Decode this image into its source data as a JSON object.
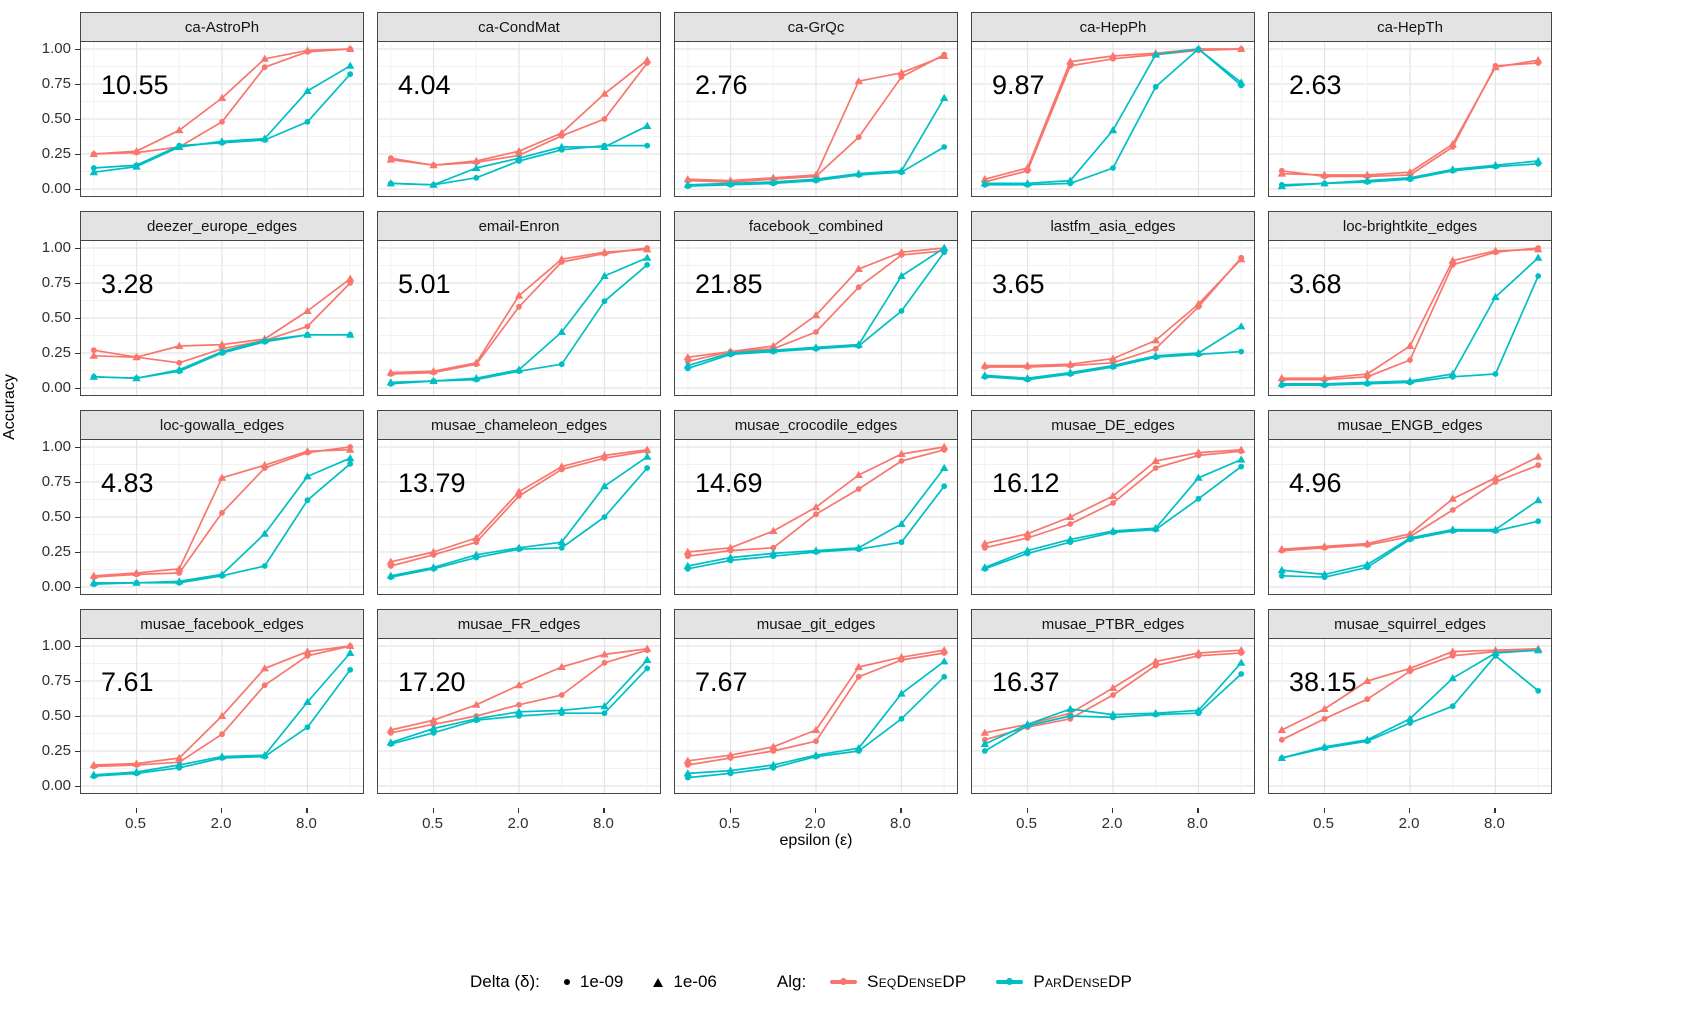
{
  "figure": {
    "ylabel": "Accuracy",
    "xlabel": "epsilon (ε)",
    "y_axis": {
      "ticks": [
        {
          "label": "1.00",
          "value": 1.0
        },
        {
          "label": "0.75",
          "value": 0.75
        },
        {
          "label": "0.50",
          "value": 0.5
        },
        {
          "label": "0.25",
          "value": 0.25
        },
        {
          "label": "0.00",
          "value": 0.0
        }
      ]
    },
    "x_axis": {
      "ticks": [
        {
          "label": "0.5",
          "value": 0.5
        },
        {
          "label": "2.0",
          "value": 2.0
        },
        {
          "label": "8.0",
          "value": 8.0
        }
      ]
    }
  },
  "legend": {
    "delta_title": "Delta (δ):",
    "delta_items": [
      {
        "marker": "circle",
        "label": "1e-09"
      },
      {
        "marker": "triangle",
        "label": "1e-06"
      }
    ],
    "alg_title": "Alg:",
    "alg_items": [
      {
        "label": "SeqDenseDP",
        "color": "#F8766D"
      },
      {
        "label": "ParDenseDP",
        "color": "#00BFC4"
      }
    ]
  },
  "chart_data": {
    "type": "line",
    "x_scale": "log2",
    "x": [
      0.25,
      0.5,
      1,
      2,
      4,
      8,
      16
    ],
    "xlim": [
      0.25,
      16
    ],
    "ylim": [
      0,
      1
    ],
    "grid": true,
    "colors": {
      "SeqDenseDP": "#F8766D",
      "ParDenseDP": "#00BFC4"
    },
    "series_spec": [
      {
        "key": "s09",
        "alg": "SeqDenseDP",
        "delta": "1e-09",
        "marker": "circle"
      },
      {
        "key": "s06",
        "alg": "SeqDenseDP",
        "delta": "1e-06",
        "marker": "triangle"
      },
      {
        "key": "p09",
        "alg": "ParDenseDP",
        "delta": "1e-09",
        "marker": "circle"
      },
      {
        "key": "p06",
        "alg": "ParDenseDP",
        "delta": "1e-06",
        "marker": "triangle"
      }
    ],
    "panels": [
      {
        "title": "ca-AstroPh",
        "annotation": "10.55",
        "s09": [
          0.25,
          0.26,
          0.3,
          0.48,
          0.87,
          0.98,
          1.0
        ],
        "s06": [
          0.25,
          0.27,
          0.42,
          0.65,
          0.93,
          0.99,
          1.0
        ],
        "p09": [
          0.15,
          0.17,
          0.31,
          0.33,
          0.35,
          0.48,
          0.82
        ],
        "p06": [
          0.12,
          0.16,
          0.3,
          0.34,
          0.36,
          0.7,
          0.88
        ]
      },
      {
        "title": "ca-CondMat",
        "annotation": "4.04",
        "s09": [
          0.22,
          0.17,
          0.19,
          0.24,
          0.38,
          0.5,
          0.9
        ],
        "s06": [
          0.21,
          0.17,
          0.2,
          0.27,
          0.4,
          0.68,
          0.92
        ],
        "p09": [
          0.04,
          0.03,
          0.08,
          0.2,
          0.28,
          0.31,
          0.31
        ],
        "p06": [
          0.04,
          0.03,
          0.15,
          0.22,
          0.3,
          0.3,
          0.45
        ]
      },
      {
        "title": "ca-GrQc",
        "annotation": "2.76",
        "s09": [
          0.06,
          0.05,
          0.07,
          0.09,
          0.37,
          0.8,
          0.96
        ],
        "s06": [
          0.07,
          0.06,
          0.08,
          0.1,
          0.77,
          0.83,
          0.95
        ],
        "p09": [
          0.02,
          0.03,
          0.04,
          0.06,
          0.1,
          0.12,
          0.3
        ],
        "p06": [
          0.03,
          0.04,
          0.05,
          0.07,
          0.11,
          0.13,
          0.65
        ]
      },
      {
        "title": "ca-HepPh",
        "annotation": "9.87",
        "s09": [
          0.05,
          0.13,
          0.88,
          0.93,
          0.96,
          0.99,
          1.0
        ],
        "s06": [
          0.07,
          0.15,
          0.91,
          0.95,
          0.97,
          1.0,
          1.0
        ],
        "p09": [
          0.03,
          0.03,
          0.04,
          0.15,
          0.73,
          1.0,
          0.74
        ],
        "p06": [
          0.04,
          0.04,
          0.06,
          0.42,
          0.96,
          1.0,
          0.76
        ]
      },
      {
        "title": "ca-HepTh",
        "annotation": "2.63",
        "s09": [
          0.13,
          0.09,
          0.09,
          0.1,
          0.3,
          0.88,
          0.9
        ],
        "s06": [
          0.11,
          0.1,
          0.1,
          0.12,
          0.32,
          0.87,
          0.92
        ],
        "p09": [
          0.03,
          0.04,
          0.05,
          0.07,
          0.13,
          0.16,
          0.18
        ],
        "p06": [
          0.02,
          0.04,
          0.06,
          0.08,
          0.14,
          0.17,
          0.2
        ]
      },
      {
        "title": "deezer_europe_edges",
        "annotation": "3.28",
        "s09": [
          0.27,
          0.22,
          0.18,
          0.28,
          0.34,
          0.44,
          0.75
        ],
        "s06": [
          0.23,
          0.22,
          0.3,
          0.31,
          0.35,
          0.55,
          0.78
        ],
        "p09": [
          0.08,
          0.07,
          0.12,
          0.25,
          0.33,
          0.38,
          0.38
        ],
        "p06": [
          0.08,
          0.07,
          0.13,
          0.26,
          0.34,
          0.38,
          0.38
        ]
      },
      {
        "title": "email-Enron",
        "annotation": "5.01",
        "s09": [
          0.1,
          0.11,
          0.17,
          0.58,
          0.9,
          0.96,
          1.0
        ],
        "s06": [
          0.11,
          0.12,
          0.18,
          0.66,
          0.92,
          0.97,
          0.99
        ],
        "p09": [
          0.03,
          0.05,
          0.06,
          0.12,
          0.17,
          0.62,
          0.88
        ],
        "p06": [
          0.04,
          0.05,
          0.07,
          0.13,
          0.4,
          0.8,
          0.93
        ]
      },
      {
        "title": "facebook_combined",
        "annotation": "21.85",
        "s09": [
          0.19,
          0.26,
          0.28,
          0.4,
          0.72,
          0.95,
          0.98
        ],
        "s06": [
          0.22,
          0.26,
          0.3,
          0.52,
          0.85,
          0.97,
          1.0
        ],
        "p09": [
          0.14,
          0.24,
          0.26,
          0.28,
          0.3,
          0.55,
          0.97
        ],
        "p06": [
          0.16,
          0.25,
          0.27,
          0.29,
          0.31,
          0.8,
          1.0
        ]
      },
      {
        "title": "lastfm_asia_edges",
        "annotation": "3.65",
        "s09": [
          0.15,
          0.15,
          0.16,
          0.18,
          0.28,
          0.58,
          0.93
        ],
        "s06": [
          0.16,
          0.16,
          0.17,
          0.21,
          0.34,
          0.6,
          0.92
        ],
        "p09": [
          0.08,
          0.06,
          0.1,
          0.15,
          0.22,
          0.24,
          0.26
        ],
        "p06": [
          0.09,
          0.07,
          0.11,
          0.16,
          0.23,
          0.25,
          0.44
        ]
      },
      {
        "title": "loc-brightkite_edges",
        "annotation": "3.68",
        "s09": [
          0.06,
          0.06,
          0.08,
          0.2,
          0.88,
          0.97,
          1.0
        ],
        "s06": [
          0.07,
          0.07,
          0.1,
          0.3,
          0.91,
          0.98,
          0.99
        ],
        "p09": [
          0.02,
          0.02,
          0.03,
          0.04,
          0.08,
          0.1,
          0.8
        ],
        "p06": [
          0.03,
          0.03,
          0.04,
          0.05,
          0.1,
          0.65,
          0.93
        ]
      },
      {
        "title": "loc-gowalla_edges",
        "annotation": "4.83",
        "s09": [
          0.07,
          0.09,
          0.1,
          0.53,
          0.85,
          0.96,
          1.0
        ],
        "s06": [
          0.08,
          0.1,
          0.13,
          0.78,
          0.87,
          0.97,
          0.98
        ],
        "p09": [
          0.02,
          0.03,
          0.03,
          0.08,
          0.15,
          0.62,
          0.88
        ],
        "p06": [
          0.03,
          0.03,
          0.04,
          0.09,
          0.38,
          0.79,
          0.92
        ]
      },
      {
        "title": "musae_chameleon_edges",
        "annotation": "13.79",
        "s09": [
          0.15,
          0.23,
          0.32,
          0.65,
          0.84,
          0.92,
          0.97
        ],
        "s06": [
          0.18,
          0.25,
          0.35,
          0.68,
          0.86,
          0.94,
          0.98
        ],
        "p09": [
          0.07,
          0.13,
          0.21,
          0.27,
          0.28,
          0.5,
          0.85
        ],
        "p06": [
          0.08,
          0.14,
          0.23,
          0.28,
          0.32,
          0.72,
          0.93
        ]
      },
      {
        "title": "musae_crocodile_edges",
        "annotation": "14.69",
        "s09": [
          0.22,
          0.26,
          0.28,
          0.52,
          0.7,
          0.9,
          0.98
        ],
        "s06": [
          0.25,
          0.28,
          0.4,
          0.57,
          0.8,
          0.95,
          1.0
        ],
        "p09": [
          0.13,
          0.19,
          0.22,
          0.25,
          0.27,
          0.32,
          0.72
        ],
        "p06": [
          0.15,
          0.21,
          0.24,
          0.26,
          0.28,
          0.45,
          0.85
        ]
      },
      {
        "title": "musae_DE_edges",
        "annotation": "16.12",
        "s09": [
          0.28,
          0.35,
          0.45,
          0.6,
          0.85,
          0.94,
          0.97
        ],
        "s06": [
          0.31,
          0.38,
          0.5,
          0.65,
          0.9,
          0.96,
          0.98
        ],
        "p09": [
          0.13,
          0.24,
          0.32,
          0.39,
          0.41,
          0.63,
          0.86
        ],
        "p06": [
          0.14,
          0.26,
          0.34,
          0.4,
          0.42,
          0.78,
          0.91
        ]
      },
      {
        "title": "musae_ENGB_edges",
        "annotation": "4.96",
        "s09": [
          0.26,
          0.28,
          0.3,
          0.36,
          0.55,
          0.75,
          0.87
        ],
        "s06": [
          0.27,
          0.29,
          0.31,
          0.38,
          0.63,
          0.78,
          0.93
        ],
        "p09": [
          0.08,
          0.07,
          0.14,
          0.34,
          0.4,
          0.4,
          0.47
        ],
        "p06": [
          0.12,
          0.09,
          0.16,
          0.35,
          0.41,
          0.41,
          0.62
        ]
      },
      {
        "title": "musae_facebook_edges",
        "annotation": "7.61",
        "s09": [
          0.14,
          0.15,
          0.17,
          0.37,
          0.72,
          0.93,
          1.0
        ],
        "s06": [
          0.15,
          0.16,
          0.2,
          0.5,
          0.84,
          0.96,
          1.0
        ],
        "p09": [
          0.07,
          0.09,
          0.13,
          0.2,
          0.21,
          0.42,
          0.83
        ],
        "p06": [
          0.08,
          0.1,
          0.15,
          0.21,
          0.22,
          0.6,
          0.95
        ]
      },
      {
        "title": "musae_FR_edges",
        "annotation": "17.20",
        "s09": [
          0.38,
          0.44,
          0.5,
          0.58,
          0.65,
          0.88,
          0.97
        ],
        "s06": [
          0.4,
          0.47,
          0.58,
          0.72,
          0.85,
          0.94,
          0.98
        ],
        "p09": [
          0.3,
          0.38,
          0.47,
          0.5,
          0.52,
          0.52,
          0.84
        ],
        "p06": [
          0.31,
          0.41,
          0.48,
          0.53,
          0.54,
          0.57,
          0.9
        ]
      },
      {
        "title": "musae_git_edges",
        "annotation": "7.67",
        "s09": [
          0.15,
          0.2,
          0.25,
          0.32,
          0.78,
          0.9,
          0.95
        ],
        "s06": [
          0.18,
          0.22,
          0.28,
          0.4,
          0.85,
          0.92,
          0.97
        ],
        "p09": [
          0.06,
          0.09,
          0.13,
          0.21,
          0.25,
          0.48,
          0.78
        ],
        "p06": [
          0.09,
          0.11,
          0.15,
          0.22,
          0.27,
          0.66,
          0.89
        ]
      },
      {
        "title": "musae_PTBR_edges",
        "annotation": "16.37",
        "s09": [
          0.33,
          0.42,
          0.48,
          0.65,
          0.86,
          0.93,
          0.95
        ],
        "s06": [
          0.38,
          0.44,
          0.52,
          0.7,
          0.89,
          0.95,
          0.97
        ],
        "p09": [
          0.25,
          0.43,
          0.5,
          0.49,
          0.51,
          0.52,
          0.8
        ],
        "p06": [
          0.3,
          0.44,
          0.55,
          0.51,
          0.52,
          0.54,
          0.88
        ]
      },
      {
        "title": "musae_squirrel_edges",
        "annotation": "38.15",
        "s09": [
          0.33,
          0.48,
          0.62,
          0.82,
          0.93,
          0.96,
          0.97
        ],
        "s06": [
          0.4,
          0.55,
          0.75,
          0.84,
          0.96,
          0.97,
          0.98
        ],
        "p09": [
          0.2,
          0.27,
          0.32,
          0.45,
          0.57,
          0.93,
          0.68
        ],
        "p06": [
          0.2,
          0.28,
          0.33,
          0.48,
          0.77,
          0.95,
          0.97
        ]
      }
    ]
  }
}
